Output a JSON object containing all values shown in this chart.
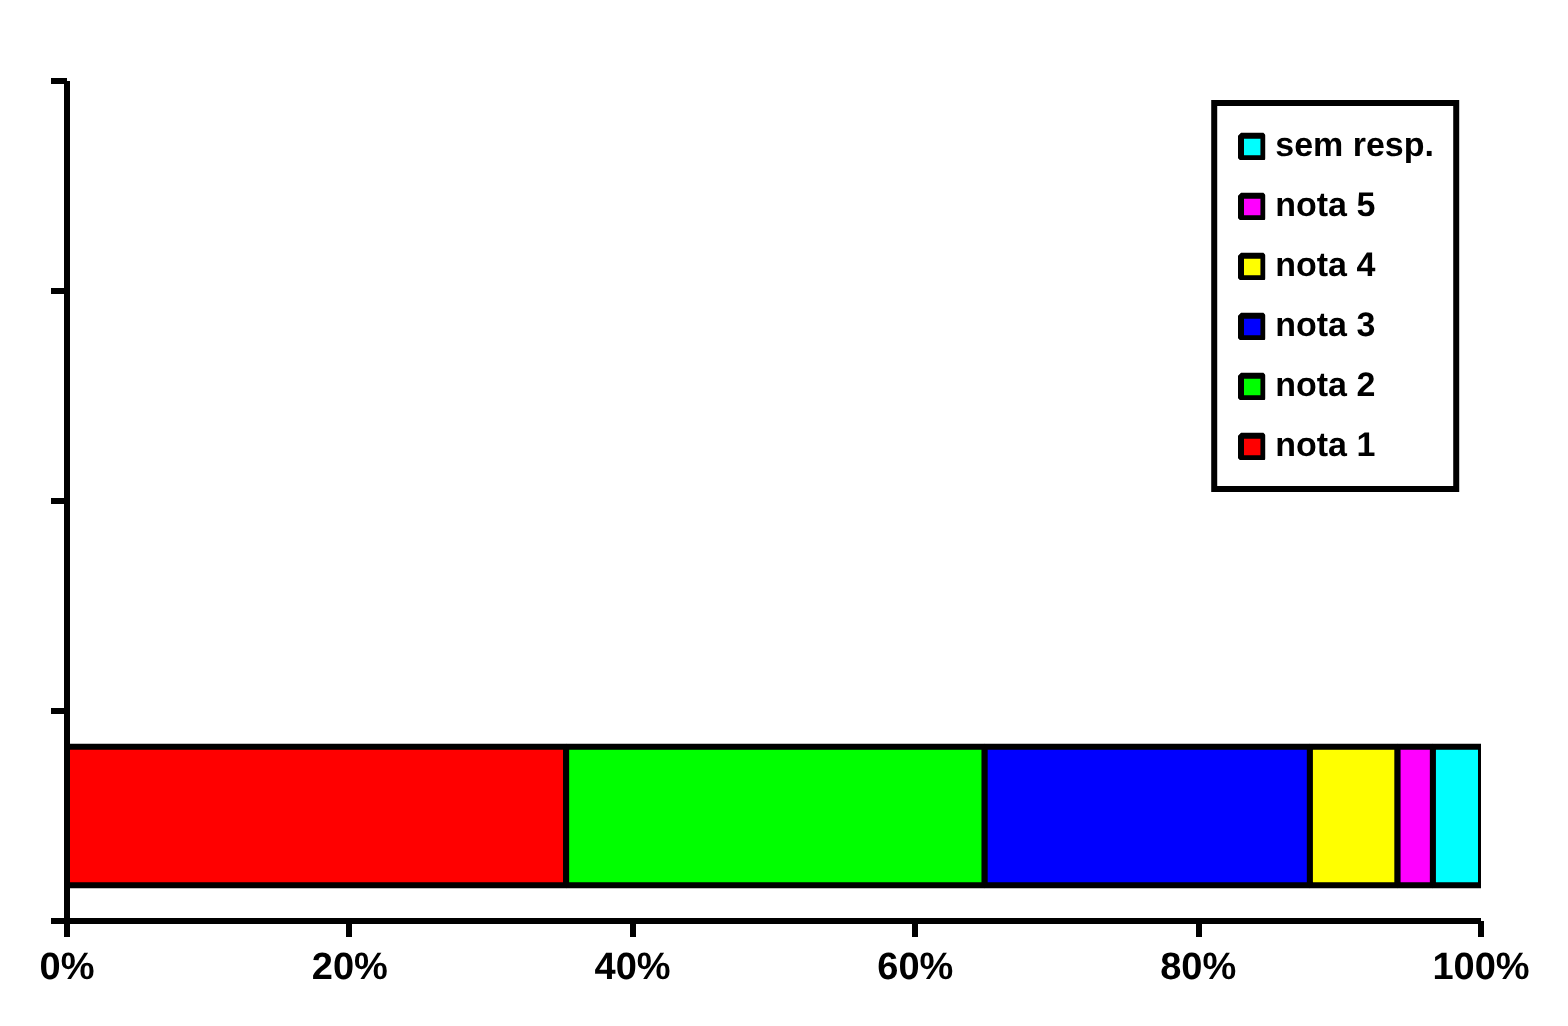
{
  "chart_data": {
    "type": "bar",
    "orientation": "horizontal",
    "stacked": true,
    "categories": [
      null,
      null,
      null,
      null
    ],
    "series": [
      {
        "name": "nota 1",
        "color": "#ff0000",
        "values": [
          null,
          null,
          null,
          35.3
        ]
      },
      {
        "name": "nota 2",
        "color": "#00ff00",
        "values": [
          null,
          null,
          null,
          29.6
        ]
      },
      {
        "name": "nota 3",
        "color": "#0000ff",
        "values": [
          null,
          null,
          null,
          23.0
        ]
      },
      {
        "name": "nota 4",
        "color": "#ffff00",
        "values": [
          null,
          null,
          null,
          6.2
        ]
      },
      {
        "name": "nota 5",
        "color": "#ff00ff",
        "values": [
          null,
          null,
          null,
          2.5
        ]
      },
      {
        "name": "sem resp.",
        "color": "#00ffff",
        "values": [
          null,
          null,
          null,
          3.4
        ]
      }
    ],
    "xlim": [
      0,
      100
    ],
    "xticks": [
      {
        "value": 0,
        "label": "0%"
      },
      {
        "value": 20,
        "label": "20%"
      },
      {
        "value": 40,
        "label": "40%"
      },
      {
        "value": 60,
        "label": "60%"
      },
      {
        "value": 80,
        "label": "80%"
      },
      {
        "value": 100,
        "label": "100%"
      }
    ],
    "grid": false,
    "legend": "top right"
  }
}
